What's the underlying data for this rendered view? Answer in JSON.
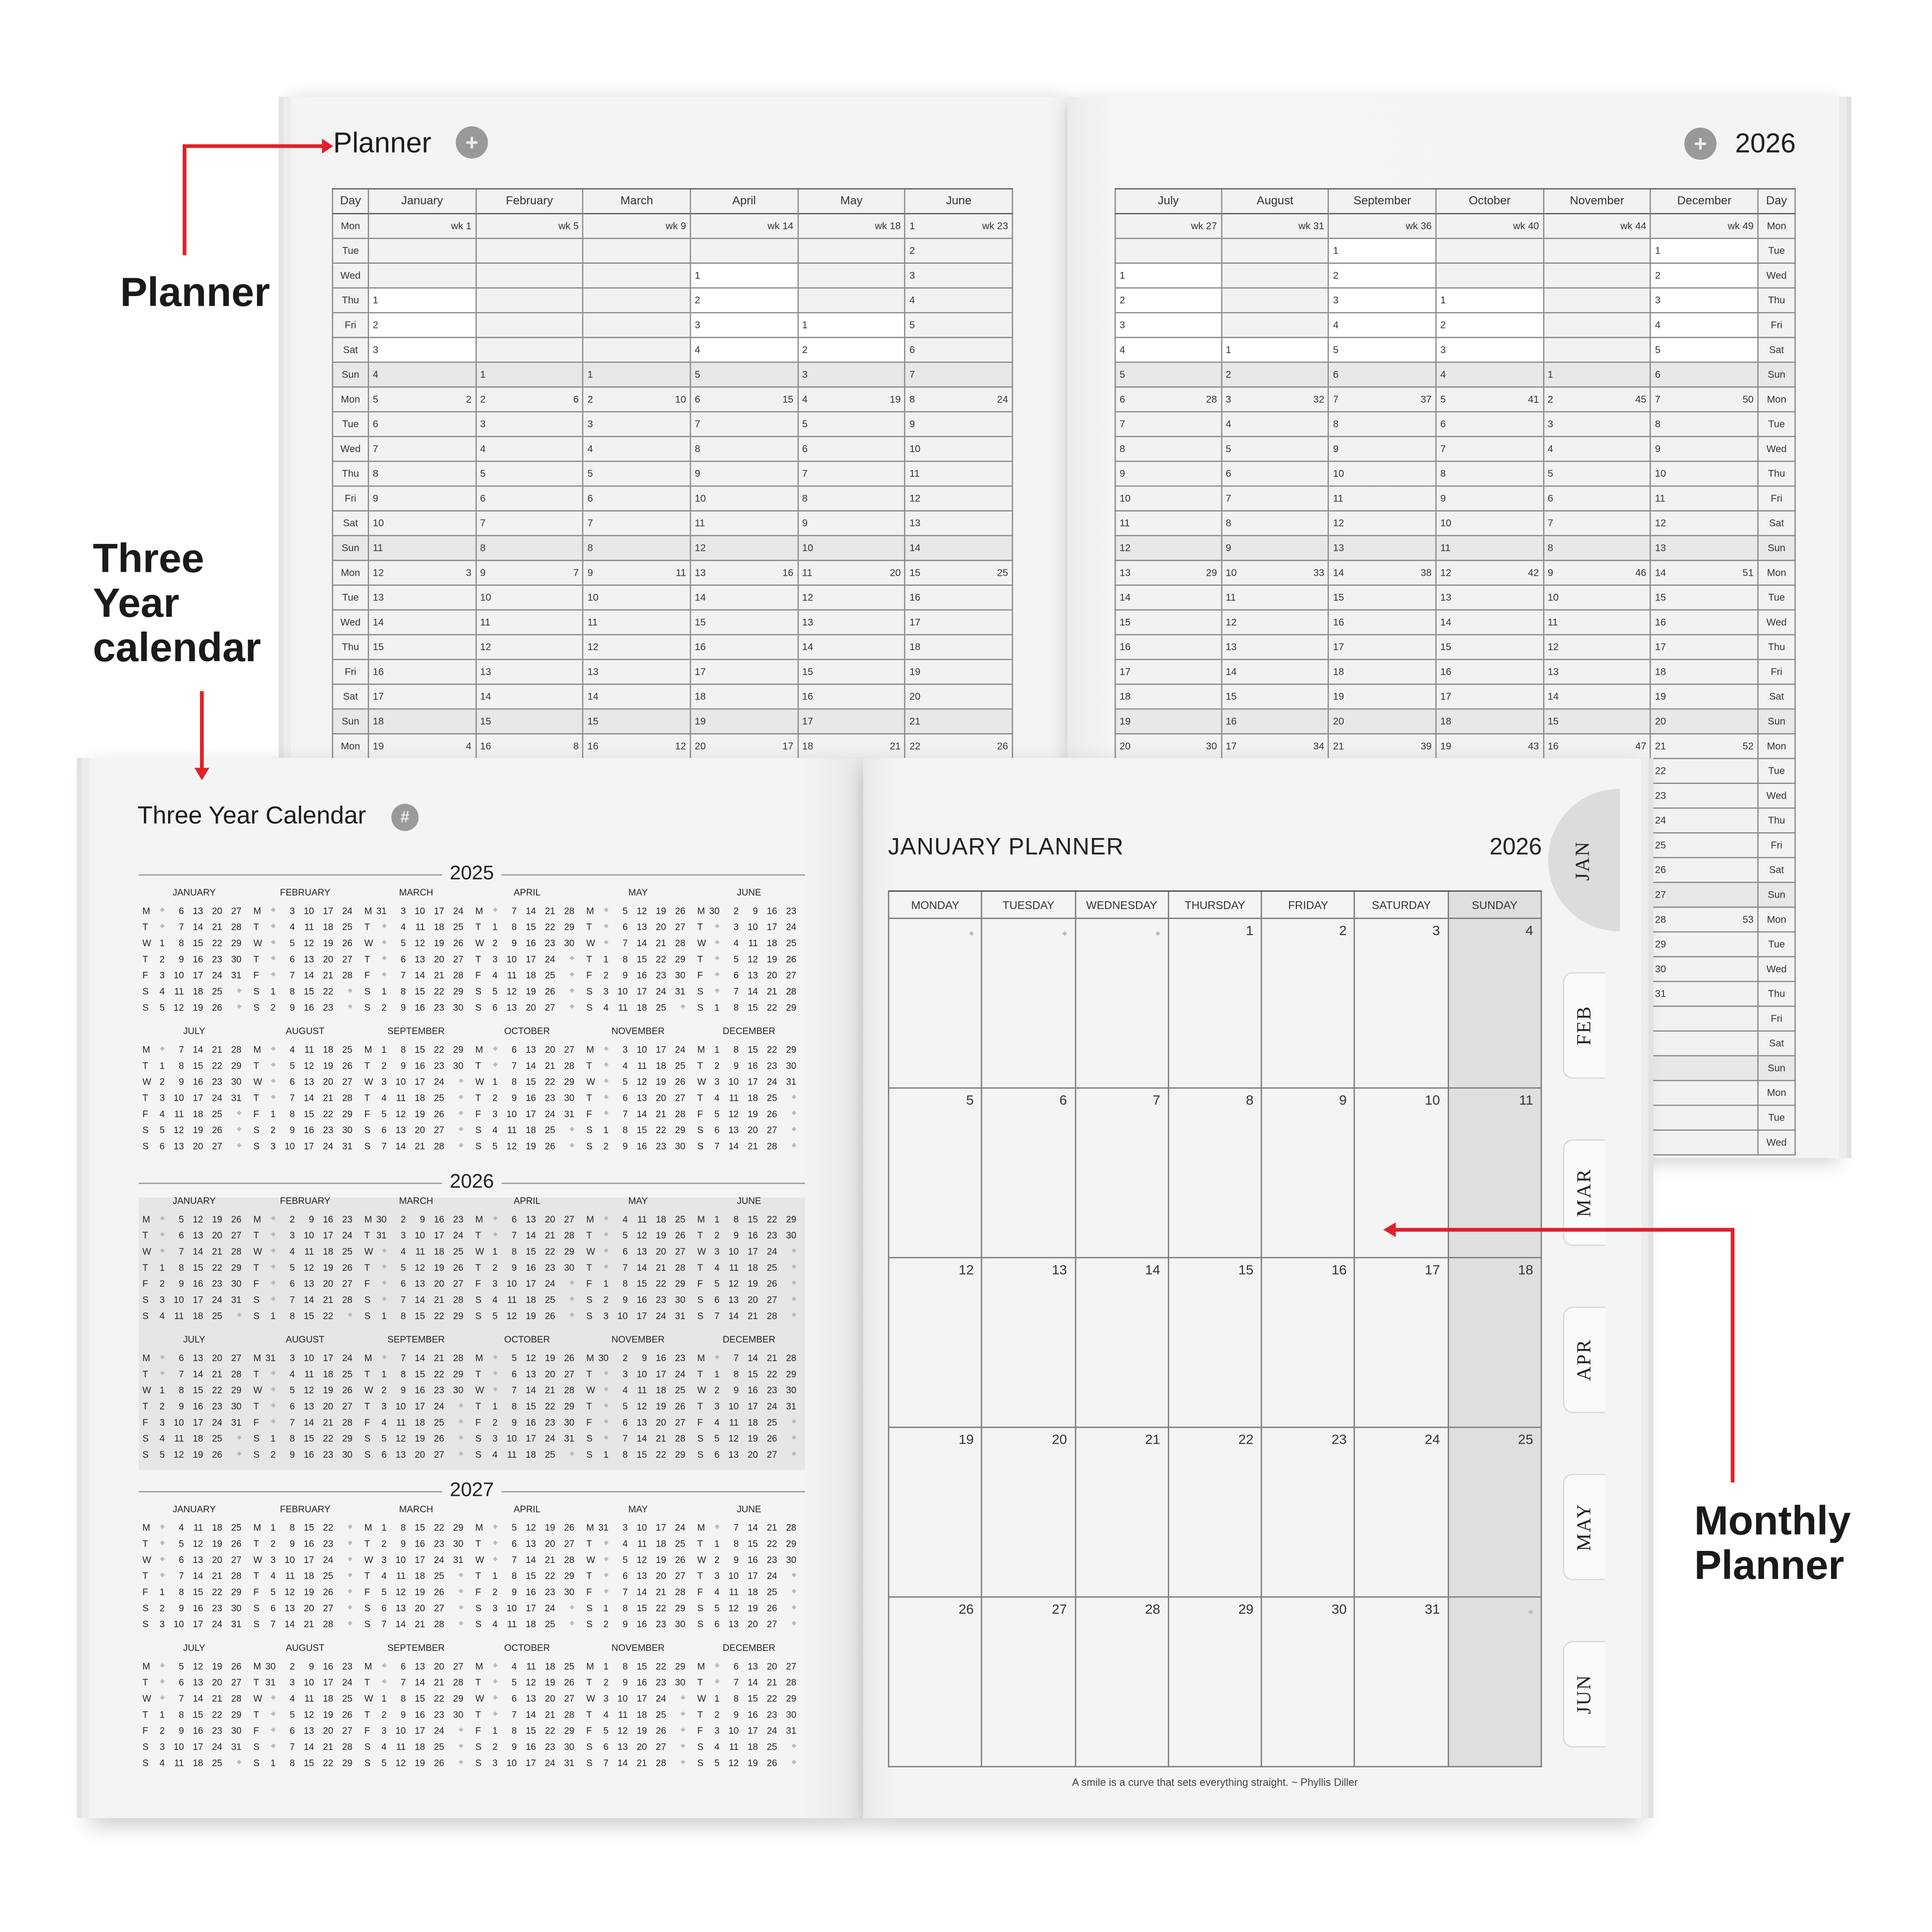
{
  "callouts": {
    "planner": "Planner",
    "three_year": "Three\nYear\ncalendar",
    "monthly": "Monthly\nPlanner",
    "arrow_color": "#e0202a"
  },
  "planner": {
    "title": "Planner",
    "year": "2026",
    "icon": "add-document-icon",
    "day_header": "Day",
    "week_prefix": "wk ",
    "weekdays": [
      "Mon",
      "Tue",
      "Wed",
      "Thu",
      "Fri",
      "Sat",
      "Sun"
    ],
    "months_left": [
      "January",
      "February",
      "March",
      "April",
      "May",
      "June"
    ],
    "months_right": [
      "July",
      "August",
      "September",
      "October",
      "November",
      "December"
    ]
  },
  "three_year": {
    "title": "Three Year Calendar",
    "icon": "calendar-grid-icon",
    "years": [
      "2025",
      "2026",
      "2027"
    ],
    "month_names": [
      "JANUARY",
      "FEBRUARY",
      "MARCH",
      "APRIL",
      "MAY",
      "JUNE",
      "JULY",
      "AUGUST",
      "SEPTEMBER",
      "OCTOBER",
      "NOVEMBER",
      "DECEMBER"
    ],
    "weekday_letters": [
      "M",
      "T",
      "W",
      "T",
      "F",
      "S",
      "S"
    ]
  },
  "monthly": {
    "title": "JANUARY  PLANNER",
    "year": "2026",
    "weekdays": [
      "MONDAY",
      "TUESDAY",
      "WEDNESDAY",
      "THURSDAY",
      "FRIDAY",
      "SATURDAY",
      "SUNDAY"
    ],
    "tabs": [
      "JAN",
      "FEB",
      "MAR",
      "APR",
      "MAY",
      "JUN"
    ],
    "active_tab": "JAN",
    "quote": "A smile is a curve that sets everything straight. ~ Phyllis Diller"
  }
}
